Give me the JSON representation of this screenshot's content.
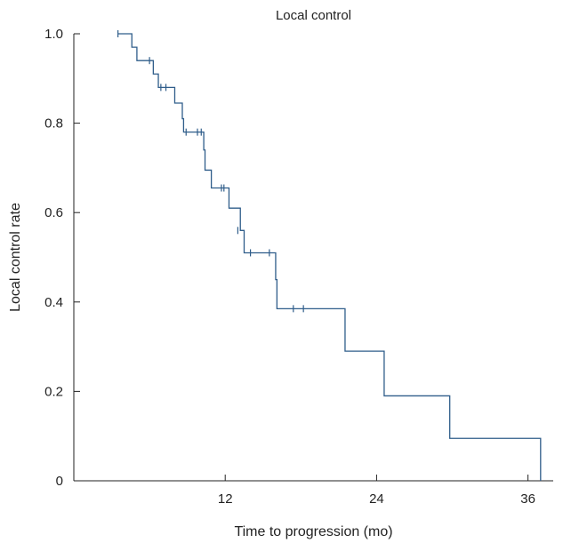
{
  "chart_data": {
    "type": "line",
    "title": "Local control",
    "xlabel": "Time to progression (mo)",
    "ylabel": "Local control rate",
    "xlim": [
      0,
      38
    ],
    "ylim": [
      0,
      1.0
    ],
    "xticks": [
      {
        "value": 12,
        "label": "12"
      },
      {
        "value": 24,
        "label": "24"
      },
      {
        "value": 36,
        "label": "36"
      }
    ],
    "yticks": [
      {
        "value": 0,
        "label": "0"
      },
      {
        "value": 0.2,
        "label": "0.2"
      },
      {
        "value": 0.4,
        "label": "0.4"
      },
      {
        "value": 0.6,
        "label": "0.6"
      },
      {
        "value": 0.8,
        "label": "0.8"
      },
      {
        "value": 1.0,
        "label": "1.0"
      }
    ],
    "grid": false,
    "line_color": "#2f5d8a",
    "series": [
      {
        "step_points": [
          {
            "x": 3.5,
            "y": 1.0
          },
          {
            "x": 4.6,
            "y": 0.97
          },
          {
            "x": 5.0,
            "y": 0.94
          },
          {
            "x": 6.3,
            "y": 0.91
          },
          {
            "x": 6.7,
            "y": 0.88
          },
          {
            "x": 8.0,
            "y": 0.845
          },
          {
            "x": 8.6,
            "y": 0.81
          },
          {
            "x": 8.7,
            "y": 0.78
          },
          {
            "x": 10.3,
            "y": 0.74
          },
          {
            "x": 10.4,
            "y": 0.695
          },
          {
            "x": 10.9,
            "y": 0.655
          },
          {
            "x": 12.3,
            "y": 0.61
          },
          {
            "x": 13.2,
            "y": 0.56
          },
          {
            "x": 13.5,
            "y": 0.51
          },
          {
            "x": 16.0,
            "y": 0.45
          },
          {
            "x": 16.1,
            "y": 0.385
          },
          {
            "x": 21.5,
            "y": 0.29
          },
          {
            "x": 24.6,
            "y": 0.19
          },
          {
            "x": 29.8,
            "y": 0.095
          },
          {
            "x": 37.0,
            "y": 0.0
          }
        ],
        "censored": [
          {
            "x": 3.5,
            "y": 1.0
          },
          {
            "x": 6.0,
            "y": 0.94
          },
          {
            "x": 6.9,
            "y": 0.88
          },
          {
            "x": 7.3,
            "y": 0.88
          },
          {
            "x": 8.9,
            "y": 0.78
          },
          {
            "x": 9.8,
            "y": 0.78
          },
          {
            "x": 10.1,
            "y": 0.78
          },
          {
            "x": 11.7,
            "y": 0.655
          },
          {
            "x": 11.9,
            "y": 0.655
          },
          {
            "x": 13.0,
            "y": 0.56
          },
          {
            "x": 14.0,
            "y": 0.51
          },
          {
            "x": 15.5,
            "y": 0.51
          },
          {
            "x": 17.4,
            "y": 0.385
          },
          {
            "x": 18.2,
            "y": 0.385
          }
        ]
      }
    ]
  }
}
